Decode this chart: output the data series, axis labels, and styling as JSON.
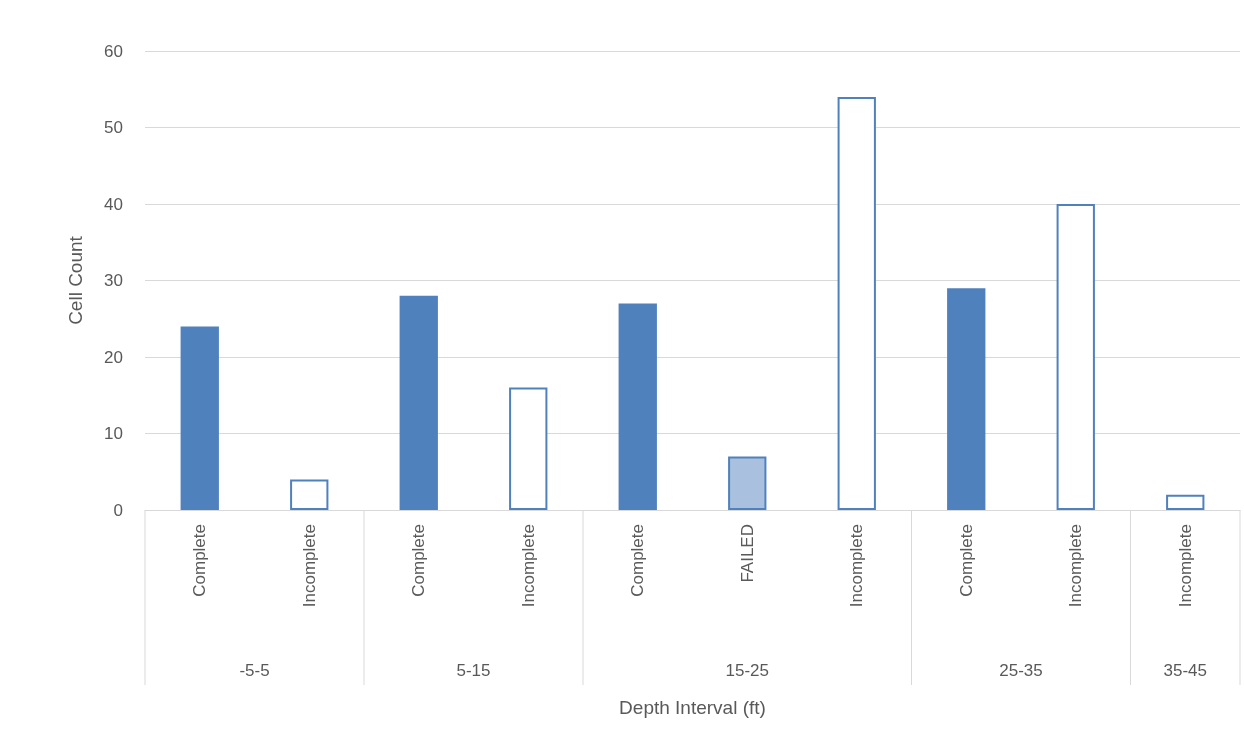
{
  "chart_data": {
    "type": "bar",
    "xlabel": "Depth Interval (ft)",
    "ylabel": "Cell Count",
    "categories": [
      "Complete",
      "Incomplete",
      "Complete",
      "Incomplete",
      "Complete",
      "FAILED",
      "Incomplete",
      "Complete",
      "Incomplete",
      "Incomplete"
    ],
    "values": [
      24,
      4,
      28,
      16,
      27,
      7,
      54,
      29,
      40,
      2
    ],
    "colors": [
      "#4f81bd",
      "#ffffff",
      "#4f81bd",
      "#ffffff",
      "#4f81bd",
      "#a9c1df",
      "#ffffff",
      "#4f81bd",
      "#ffffff",
      "#ffffff"
    ],
    "annotations": [
      "-5-5",
      "5-15",
      "15-25",
      "25-35",
      "35-45"
    ],
    "ylim": [
      0,
      60
    ],
    "yticks": [
      0,
      10,
      20,
      30,
      40,
      50,
      60
    ],
    "grid": "y"
  }
}
